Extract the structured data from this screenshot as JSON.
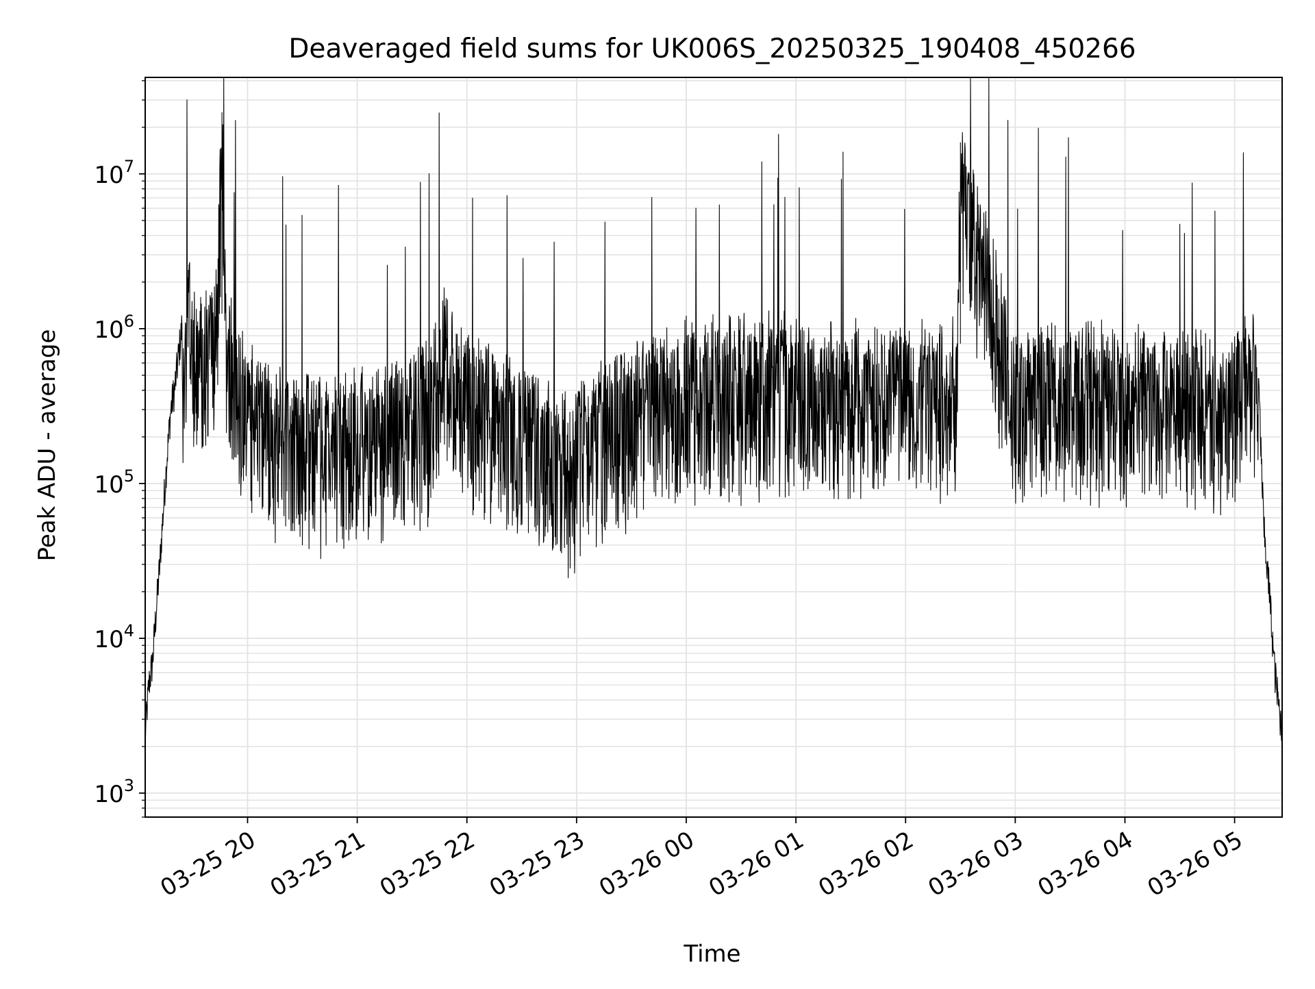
{
  "chart_data": {
    "type": "line",
    "title": "Deaveraged field sums for UK006S_20250325_190408_450266",
    "xlabel": "Time",
    "ylabel": "Peak ADU - average",
    "yscale": "log",
    "ylim": [
      700,
      42000000
    ],
    "xlim": [
      "2025-03-25 19:04",
      "2025-03-26 05:26"
    ],
    "grid": true,
    "line_color": "#000000",
    "grid_color": "#e3e3e3",
    "x_ticks": [
      {
        "label": "03-25 20",
        "time": "2025-03-25 20:00"
      },
      {
        "label": "03-25 21",
        "time": "2025-03-25 21:00"
      },
      {
        "label": "03-25 22",
        "time": "2025-03-25 22:00"
      },
      {
        "label": "03-25 23",
        "time": "2025-03-25 23:00"
      },
      {
        "label": "03-26 00",
        "time": "2025-03-26 00:00"
      },
      {
        "label": "03-26 01",
        "time": "2025-03-26 01:00"
      },
      {
        "label": "03-26 02",
        "time": "2025-03-26 02:00"
      },
      {
        "label": "03-26 03",
        "time": "2025-03-26 03:00"
      },
      {
        "label": "03-26 04",
        "time": "2025-03-26 04:00"
      },
      {
        "label": "03-26 05",
        "time": "2025-03-26 05:00"
      }
    ],
    "y_ticks": [
      {
        "exponent": "3",
        "value": 1000
      },
      {
        "exponent": "4",
        "value": 10000
      },
      {
        "exponent": "5",
        "value": 100000
      },
      {
        "exponent": "6",
        "value": 1000000
      },
      {
        "exponent": "7",
        "value": 10000000
      }
    ],
    "series": [
      {
        "x": [
          "2025-03-25 19:04",
          "2025-03-25 19:06",
          "2025-03-25 19:08",
          "2025-03-25 19:10",
          "2025-03-25 19:12",
          "2025-03-25 19:14",
          "2025-03-25 19:16",
          "2025-03-25 19:18",
          "2025-03-25 19:20",
          "2025-03-25 19:24",
          "2025-03-25 19:28",
          "2025-03-25 19:33",
          "2025-03-25 19:38",
          "2025-03-25 19:43",
          "2025-03-25 19:46",
          "2025-03-25 19:48",
          "2025-03-25 19:50",
          "2025-03-25 19:53",
          "2025-03-25 19:58",
          "2025-03-25 20:05",
          "2025-03-25 20:12",
          "2025-03-25 20:20",
          "2025-03-25 20:30",
          "2025-03-25 20:45",
          "2025-03-25 21:00",
          "2025-03-25 21:15",
          "2025-03-25 21:30",
          "2025-03-25 21:40",
          "2025-03-25 21:47",
          "2025-03-25 21:55",
          "2025-03-25 22:10",
          "2025-03-25 22:30",
          "2025-03-25 22:50",
          "2025-03-25 22:55",
          "2025-03-25 23:05",
          "2025-03-25 23:20",
          "2025-03-25 23:40",
          "2025-03-26 00:00",
          "2025-03-26 00:20",
          "2025-03-26 00:40",
          "2025-03-26 00:51",
          "2025-03-26 01:00",
          "2025-03-26 01:30",
          "2025-03-26 02:00",
          "2025-03-26 02:28",
          "2025-03-26 02:30",
          "2025-03-26 03:00",
          "2025-03-26 03:30",
          "2025-03-26 04:00",
          "2025-03-26 04:30",
          "2025-03-26 04:45",
          "2025-03-26 05:00",
          "2025-03-26 05:03",
          "2025-03-26 05:07",
          "2025-03-26 05:10",
          "2025-03-26 05:13",
          "2025-03-26 05:16",
          "2025-03-26 05:19",
          "2025-03-26 05:22",
          "2025-03-26 05:26"
        ],
        "y": [
          2400,
          5000,
          7000,
          15000,
          30000,
          70000,
          150000,
          300000,
          400000,
          1000000,
          3000000,
          1200000,
          1500000,
          2000000,
          25000000,
          1800000,
          1200000,
          900000,
          700000,
          500000,
          420000,
          400000,
          380000,
          350000,
          380000,
          420000,
          500000,
          600000,
          1500000,
          800000,
          600000,
          420000,
          300000,
          260000,
          350000,
          500000,
          650000,
          800000,
          820000,
          850000,
          900000,
          800000,
          780000,
          760000,
          800000,
          16000000,
          740000,
          760000,
          740000,
          720000,
          650000,
          650000,
          800000,
          1100000,
          900000,
          500000,
          50000,
          20000,
          6000,
          2400
        ]
      }
    ]
  }
}
